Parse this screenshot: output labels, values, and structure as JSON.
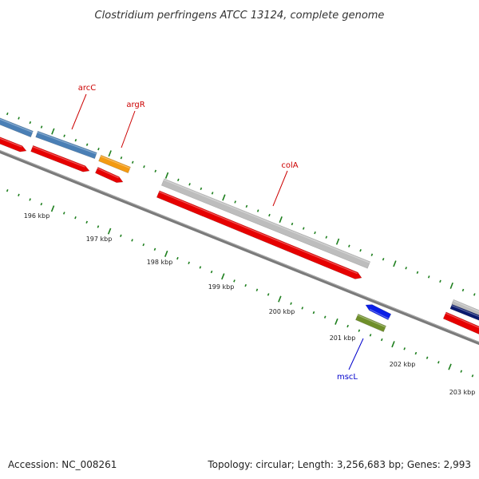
{
  "title": "Clostridium perfringens ATCC 13124, complete genome",
  "footer": {
    "accession": "Accession: NC_008261",
    "summary": "Topology: circular; Length: 3,256,683 bp; Genes: 2,993"
  },
  "ticks": [
    {
      "label": "196 kbp"
    },
    {
      "label": "197 kbp"
    },
    {
      "label": "198 kbp"
    },
    {
      "label": "199 kbp"
    },
    {
      "label": "200 kbp"
    },
    {
      "label": "201 kbp"
    },
    {
      "label": "202 kbp"
    },
    {
      "label": "203 kbp"
    }
  ],
  "gene_labels": [
    {
      "name": "arcC",
      "color": "#cc0000"
    },
    {
      "name": "argR",
      "color": "#cc0000"
    },
    {
      "name": "colA",
      "color": "#cc0000"
    },
    {
      "name": "mscL",
      "color": "#0000cc"
    }
  ],
  "colors": {
    "cds_red": "#e60000",
    "gene_steelblue": "#4a7fb5",
    "gene_orange": "#f39a12",
    "gene_grey": "#bdbdbd",
    "gene_blue": "#0a1ee6",
    "gene_olive": "#6f8f2a",
    "gene_navy": "#0a1a6e",
    "backbone": "#7a7a7a",
    "tick_green": "#1e7f1e"
  }
}
